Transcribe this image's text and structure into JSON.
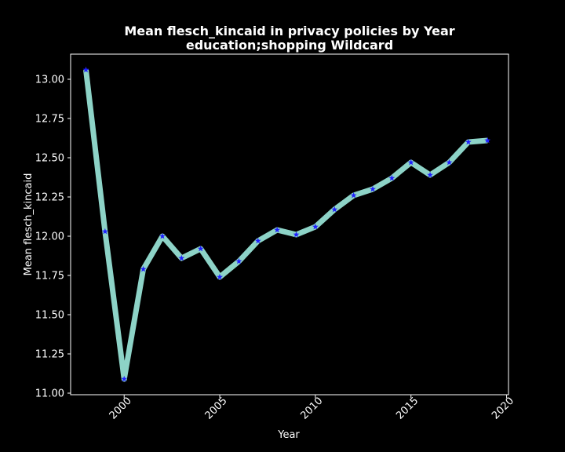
{
  "chart_data": {
    "type": "line",
    "title": "Mean flesch_kincaid in privacy policies by Year",
    "subtitle": "education;shopping Wildcard",
    "xlabel": "Year",
    "ylabel": "Mean flesch_kincaid",
    "xlim": [
      1997.2,
      2020.1
    ],
    "ylim": [
      10.99,
      13.16
    ],
    "xticks": [
      2000,
      2005,
      2010,
      2015,
      2020
    ],
    "yticks": [
      "11.00",
      "11.25",
      "11.50",
      "11.75",
      "12.00",
      "12.25",
      "12.50",
      "12.75",
      "13.00"
    ],
    "grid": false,
    "series": [
      {
        "x": [
          1998,
          1999,
          2000,
          2001,
          2002,
          2003,
          2004,
          2005,
          2006,
          2007,
          2008,
          2009,
          2010,
          2011,
          2012,
          2013,
          2014,
          2015,
          2016,
          2017,
          2018,
          2019
        ],
        "values": [
          13.06,
          12.03,
          11.09,
          11.79,
          12.0,
          11.86,
          11.92,
          11.74,
          11.84,
          11.97,
          12.04,
          12.01,
          12.06,
          12.17,
          12.26,
          12.3,
          12.37,
          12.47,
          12.39,
          12.47,
          12.6,
          12.61
        ],
        "line_color": "#8dd3c7",
        "marker_color": "#1f1fff",
        "marker": "star"
      }
    ]
  }
}
